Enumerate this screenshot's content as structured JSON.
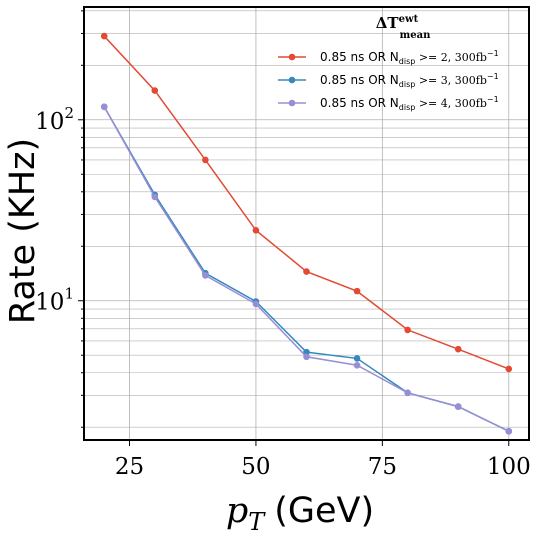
{
  "chart_data": {
    "type": "line",
    "xlabel_math": "p",
    "xlabel_sub": "T",
    "xlabel_unit": "(GeV)",
    "ylabel": "Rate (KHz)",
    "yscale": "log",
    "xlim": [
      16,
      104
    ],
    "ylim": [
      1.7,
      420
    ],
    "x_ticks": [
      25,
      50,
      75,
      100
    ],
    "y_major_ticks": [
      {
        "value": 10,
        "base": "10",
        "exp": "1"
      },
      {
        "value": 100,
        "base": "10",
        "exp": "2"
      }
    ],
    "grid": true,
    "legend": {
      "position": "top-right",
      "title_main": "ΔT",
      "title_sup": "ewt",
      "title_sub": "mean"
    },
    "x": [
      20,
      30,
      40,
      50,
      60,
      70,
      80,
      90,
      100
    ],
    "series": [
      {
        "label_prefix": "0.85 ns OR N",
        "label_sub": "disp",
        "label_suffix": " >= 2, 300fb",
        "label_sup": "−1",
        "color": "#e24a33",
        "values": [
          290,
          145,
          60,
          24.5,
          14.5,
          11.3,
          6.9,
          5.4,
          4.2
        ]
      },
      {
        "label_prefix": "0.85 ns OR N",
        "label_sub": "disp",
        "label_suffix": " >= 3, 300fb",
        "label_sup": "−1",
        "color": "#348abd",
        "values": [
          118,
          38.5,
          14.2,
          9.9,
          5.2,
          4.8,
          3.1,
          2.6,
          1.9
        ]
      },
      {
        "label_prefix": "0.85 ns OR N",
        "label_sub": "disp",
        "label_suffix": " >= 4, 300fb",
        "label_sup": "−1",
        "color": "#988ed5",
        "values": [
          118,
          37.5,
          13.8,
          9.6,
          4.9,
          4.4,
          3.1,
          2.6,
          1.9
        ]
      }
    ]
  }
}
